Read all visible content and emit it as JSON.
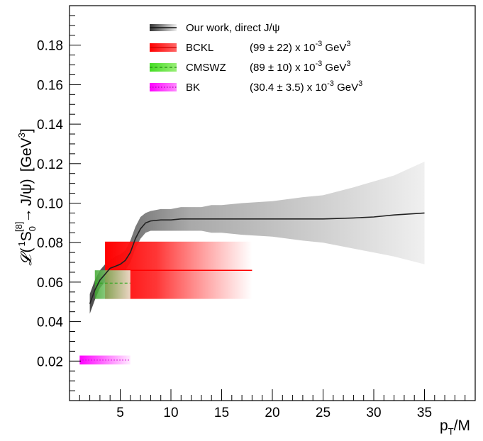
{
  "chart_data": {
    "type": "line",
    "x": {
      "label_main": "p",
      "label_sub": "T",
      "label_tail": "/M",
      "range": [
        0,
        40
      ],
      "ticks": [
        5,
        10,
        15,
        20,
        25,
        30,
        35
      ],
      "tick_labels": [
        "5",
        "10",
        "15",
        "20",
        "25",
        "30",
        "35"
      ]
    },
    "y": {
      "label_script": "𝓛",
      "label_open": "(",
      "label_state_pre": "1",
      "label_state_letter": "S",
      "label_state_sub": "0",
      "label_state_sup": "[8]",
      "label_arrow": "→",
      "label_final": "J/ψ)",
      "label_units_open": "[GeV",
      "label_units_exp": "3",
      "label_units_close": "]",
      "range": [
        0,
        0.2
      ],
      "ticks": [
        0.02,
        0.04,
        0.06,
        0.08,
        0.1,
        0.12,
        0.14,
        0.16,
        0.18
      ],
      "tick_labels": [
        "0.02",
        "0.04",
        "0.06",
        "0.08",
        "0.10",
        "0.12",
        "0.14",
        "0.16",
        "0.18"
      ]
    },
    "series": [
      {
        "name": "Our work, direct J/ψ",
        "color": "#333333",
        "band_color": "#888888",
        "x": [
          2,
          2.5,
          3,
          3.5,
          4,
          4.5,
          5,
          5.5,
          6,
          6.5,
          7,
          7.5,
          8,
          9,
          10,
          11,
          12,
          13,
          14,
          15,
          17,
          20,
          23,
          25,
          28,
          30,
          32,
          35
        ],
        "y": [
          0.049,
          0.056,
          0.061,
          0.064,
          0.067,
          0.068,
          0.069,
          0.071,
          0.075,
          0.082,
          0.087,
          0.09,
          0.091,
          0.0915,
          0.0915,
          0.092,
          0.092,
          0.092,
          0.092,
          0.092,
          0.092,
          0.092,
          0.092,
          0.092,
          0.0925,
          0.093,
          0.094,
          0.095
        ],
        "y_low": [
          0.044,
          0.051,
          0.057,
          0.06,
          0.062,
          0.063,
          0.064,
          0.066,
          0.07,
          0.077,
          0.082,
          0.085,
          0.086,
          0.086,
          0.086,
          0.086,
          0.086,
          0.086,
          0.085,
          0.085,
          0.084,
          0.083,
          0.081,
          0.08,
          0.077,
          0.075,
          0.073,
          0.069
        ],
        "y_high": [
          0.054,
          0.061,
          0.066,
          0.069,
          0.071,
          0.073,
          0.074,
          0.076,
          0.081,
          0.088,
          0.093,
          0.095,
          0.096,
          0.097,
          0.097,
          0.098,
          0.098,
          0.098,
          0.099,
          0.099,
          0.1,
          0.101,
          0.103,
          0.104,
          0.108,
          0.111,
          0.114,
          0.121
        ]
      },
      {
        "name": "BCKL",
        "value_text": "(99 ± 22) x 10",
        "value_exp": "-3",
        "unit_text": " GeV",
        "unit_exp": "3",
        "color": "#ff0000",
        "central": 0.066,
        "low": 0.0515,
        "high": 0.0805,
        "x_range": [
          3.5,
          18
        ],
        "line_style": "solid"
      },
      {
        "name": "CMSWZ",
        "value_text": "(89 ± 10) x 10",
        "value_exp": "-3",
        "unit_text": " GeV",
        "unit_exp": "3",
        "color": "#44cc22",
        "central": 0.0595,
        "low": 0.0515,
        "high": 0.066,
        "x_range": [
          2.5,
          6
        ],
        "line_style": "dashed"
      },
      {
        "name": "BK",
        "value_text": "(30.4 ± 3.5) x 10",
        "value_exp": "-3",
        "unit_text": " GeV",
        "unit_exp": "3",
        "color": "#ff00ff",
        "central": 0.0205,
        "low": 0.0183,
        "high": 0.0228,
        "x_range": [
          1,
          6
        ],
        "line_style": "dotted"
      }
    ],
    "legend_position": "top-center",
    "grid": false
  }
}
